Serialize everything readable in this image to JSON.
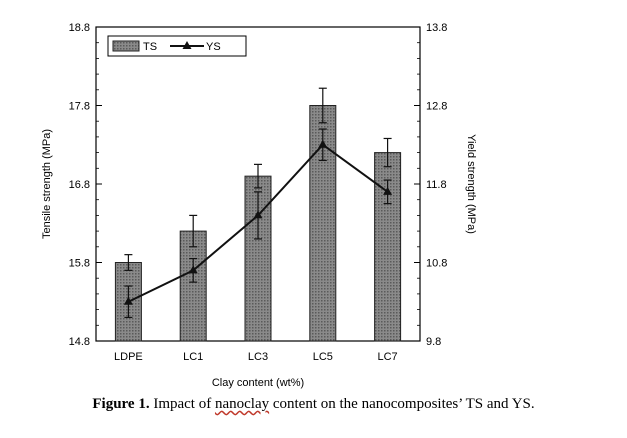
{
  "chart_data": {
    "type": "bar",
    "categories": [
      "LDPE",
      "LC1",
      "LC3",
      "LC5",
      "LC7"
    ],
    "xlabel": "Clay content (wt%)",
    "ylabel_left": "Tensile strength (MPa)",
    "ylabel_right": "Yield strength (MPa)",
    "ylim_left": [
      14.8,
      18.8
    ],
    "ylim_right": [
      9.8,
      13.8
    ],
    "yticks_left": [
      "14.8",
      "15.8",
      "16.8",
      "17.8",
      "18.8"
    ],
    "yticks_right": [
      "9.8",
      "10.8",
      "11.8",
      "12.8",
      "13.8"
    ],
    "legend_position": "top-left",
    "series": [
      {
        "name": "TS",
        "kind": "bar",
        "axis": "left",
        "values": [
          15.8,
          16.2,
          16.9,
          17.8,
          17.2
        ],
        "errors": [
          0.1,
          0.2,
          0.15,
          0.22,
          0.18
        ]
      },
      {
        "name": "YS",
        "kind": "line",
        "axis": "right",
        "values": [
          10.3,
          10.7,
          11.4,
          12.3,
          11.7
        ],
        "errors": [
          0.2,
          0.15,
          0.3,
          0.2,
          0.15
        ]
      }
    ]
  },
  "caption": {
    "lead": "Figure 1.",
    "pre": " Impact of ",
    "squiggle": "nanoclay",
    "post": " content on the nanocomposites’ TS and YS."
  }
}
